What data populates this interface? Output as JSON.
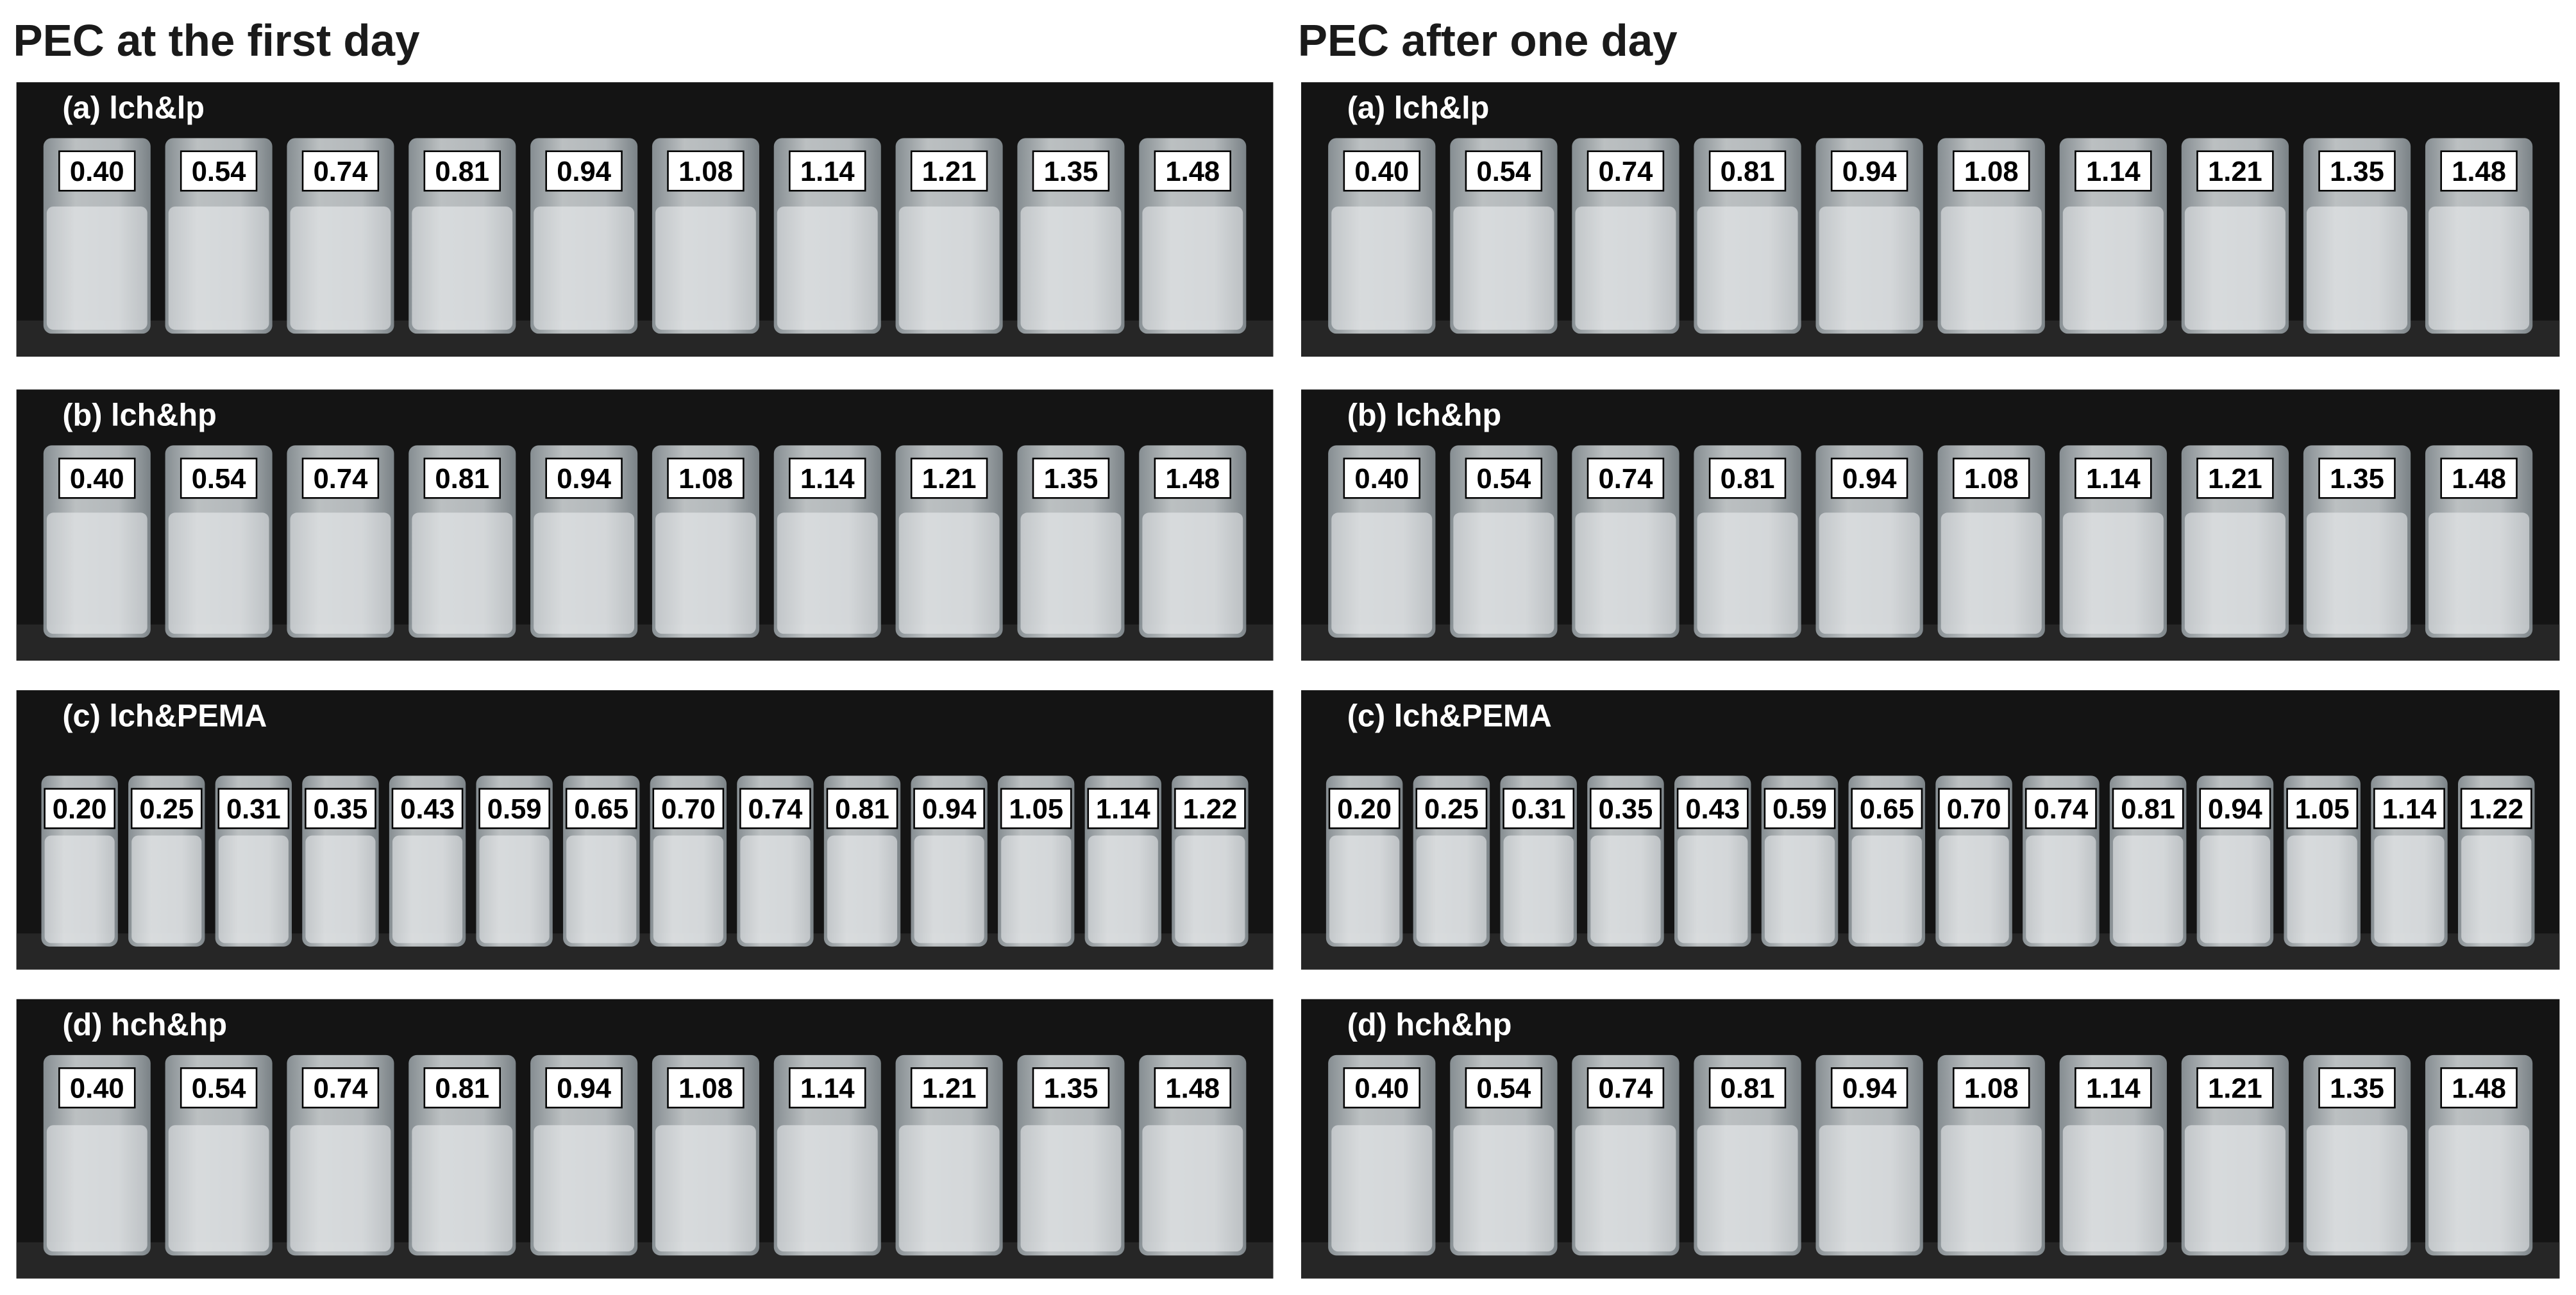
{
  "columns": [
    {
      "title": "PEC at the first day",
      "panels": [
        {
          "label": "(a) lch&lp",
          "values": [
            "0.40",
            "0.54",
            "0.74",
            "0.81",
            "0.94",
            "1.08",
            "1.14",
            "1.21",
            "1.35",
            "1.48"
          ]
        },
        {
          "label": "(b) lch&hp",
          "values": [
            "0.40",
            "0.54",
            "0.74",
            "0.81",
            "0.94",
            "1.08",
            "1.14",
            "1.21",
            "1.35",
            "1.48"
          ]
        },
        {
          "label": "(c) lch&PEMA",
          "values": [
            "0.20",
            "0.25",
            "0.31",
            "0.35",
            "0.43",
            "0.59",
            "0.65",
            "0.70",
            "0.74",
            "0.81",
            "0.94",
            "1.05",
            "1.14",
            "1.22"
          ]
        },
        {
          "label": "(d) hch&hp",
          "values": [
            "0.40",
            "0.54",
            "0.74",
            "0.81",
            "0.94",
            "1.08",
            "1.14",
            "1.21",
            "1.35",
            "1.48"
          ]
        }
      ]
    },
    {
      "title": "PEC after one day",
      "panels": [
        {
          "label": "(a) lch&lp",
          "values": [
            "0.40",
            "0.54",
            "0.74",
            "0.81",
            "0.94",
            "1.08",
            "1.14",
            "1.21",
            "1.35",
            "1.48"
          ]
        },
        {
          "label": "(b) lch&hp",
          "values": [
            "0.40",
            "0.54",
            "0.74",
            "0.81",
            "0.94",
            "1.08",
            "1.14",
            "1.21",
            "1.35",
            "1.48"
          ]
        },
        {
          "label": "(c) lch&PEMA",
          "values": [
            "0.20",
            "0.25",
            "0.31",
            "0.35",
            "0.43",
            "0.59",
            "0.65",
            "0.70",
            "0.74",
            "0.81",
            "0.94",
            "1.05",
            "1.14",
            "1.22"
          ]
        },
        {
          "label": "(d) hch&hp",
          "values": [
            "0.40",
            "0.54",
            "0.74",
            "0.81",
            "0.94",
            "1.08",
            "1.14",
            "1.21",
            "1.35",
            "1.48"
          ]
        }
      ]
    }
  ]
}
